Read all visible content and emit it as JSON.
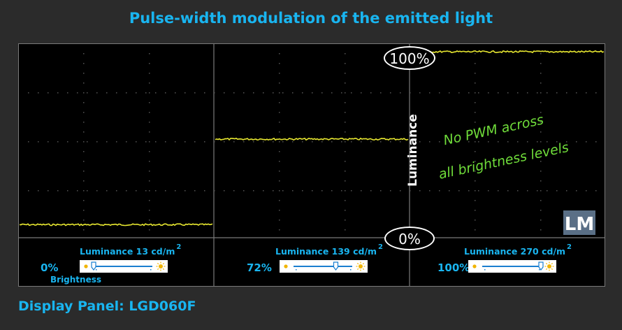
{
  "title": "Pulse-width modulation of the emitted light",
  "footer": "Display Panel: LGD060F",
  "colors": {
    "accent": "#19b5f0",
    "trace": "#e8e830",
    "annotation": "#6fdc3a",
    "grid": "#7a7a7a"
  },
  "scale": {
    "top_label": "100%",
    "bottom_label": "0%",
    "axis_label": "Luminance"
  },
  "annotation": {
    "line1": "No PWM across",
    "line2": "all brightness levels"
  },
  "logo": {
    "text": "LM"
  },
  "chart_data": {
    "type": "line",
    "title": "Pulse-width modulation of the emitted light",
    "ylabel": "Luminance",
    "ylim": [
      0,
      100
    ],
    "grid": true,
    "panels": [
      {
        "brightness": "0%",
        "brightness_fraction": 0.0,
        "luminance_label": "Luminance",
        "luminance_value": "13 cd/m",
        "superscript": "2",
        "level_percent": 3
      },
      {
        "brightness": "72%",
        "brightness_fraction": 0.72,
        "luminance_label": "Luminance",
        "luminance_value": "139 cd/m",
        "superscript": "2",
        "level_percent": 51
      },
      {
        "brightness": "100%",
        "brightness_fraction": 1.0,
        "luminance_label": "Luminance",
        "luminance_value": "270 cd/m",
        "superscript": "2",
        "level_percent": 100
      }
    ],
    "first_panel_caption": "Brightness"
  }
}
